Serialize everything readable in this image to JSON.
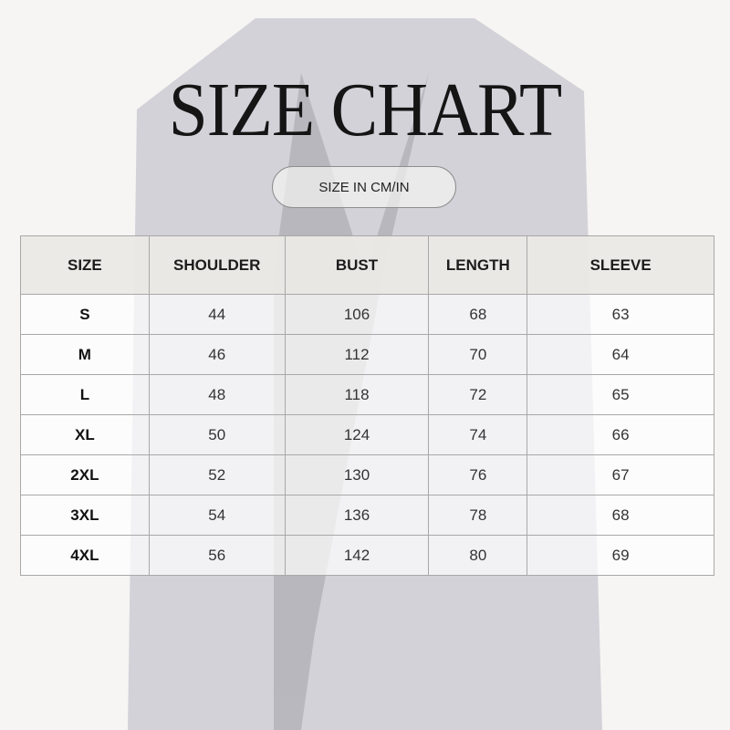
{
  "title": "SIZE CHART",
  "unit_button": "SIZE IN CM/IN",
  "table": {
    "headers": [
      "SIZE",
      "SHOULDER",
      "BUST",
      "LENGTH",
      "SLEEVE"
    ],
    "rows": [
      [
        "S",
        "44",
        "106",
        "68",
        "63"
      ],
      [
        "M",
        "46",
        "112",
        "70",
        "64"
      ],
      [
        "L",
        "48",
        "118",
        "72",
        "65"
      ],
      [
        "XL",
        "50",
        "124",
        "74",
        "66"
      ],
      [
        "2XL",
        "52",
        "130",
        "76",
        "67"
      ],
      [
        "3XL",
        "54",
        "136",
        "78",
        "68"
      ],
      [
        "4XL",
        "56",
        "142",
        "80",
        "69"
      ]
    ]
  },
  "colors": {
    "background": "#f6f5f3",
    "jacket": "#1c2150",
    "header_fill": "#eae9e6",
    "border": "#a8a8a8"
  }
}
